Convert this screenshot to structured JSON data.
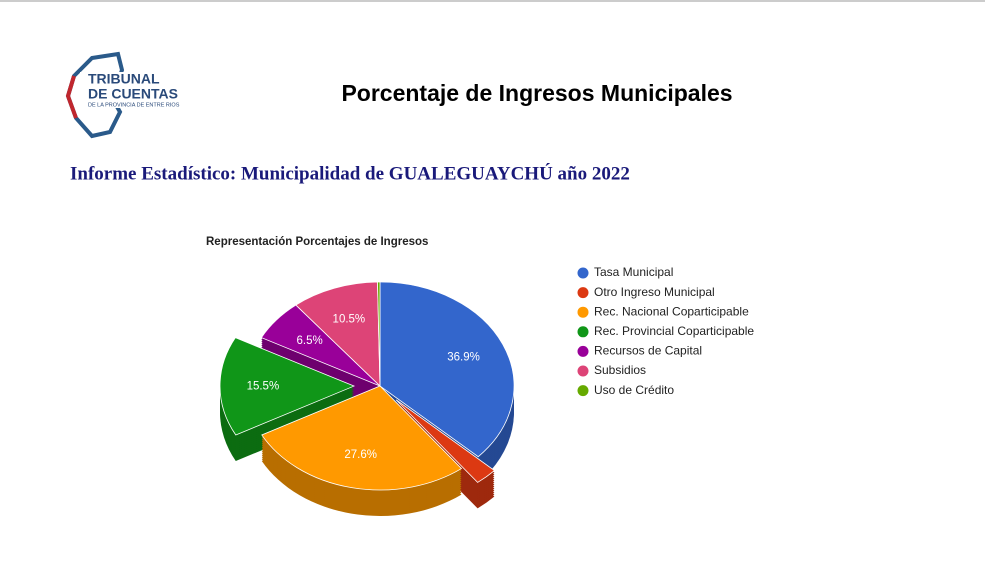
{
  "header": {
    "logo_line1": "TRIBUNAL",
    "logo_line2": "DE CUENTAS",
    "logo_line3": "DE LA PROVINCIA DE ENTRE RIOS",
    "title": "Porcentaje de Ingresos Municipales",
    "subtitle": "Informe Estadístico: Municipalidad de GUALEGUAYCHÚ año 2022"
  },
  "chart_data": {
    "type": "pie3d",
    "title": "Representación Porcentajes de Ingresos",
    "categories": [
      "Tasa Municipal",
      "Otro Ingreso Municipal",
      "Rec. Nacional Coparticipable",
      "Rec. Provincial Coparticipable",
      "Recursos de Capital",
      "Subsidios",
      "Uso de Crédito"
    ],
    "values": [
      36.9,
      2.7,
      27.6,
      15.5,
      6.5,
      10.5,
      0.3
    ],
    "value_labels": [
      "36.9%",
      null,
      "27.6%",
      "15.5%",
      "6.5%",
      "10.5%",
      null
    ],
    "colors": [
      "#3366cc",
      "#dc3912",
      "#ff9900",
      "#109618",
      "#990099",
      "#dd4477",
      "#66aa00"
    ],
    "legend": "right"
  }
}
